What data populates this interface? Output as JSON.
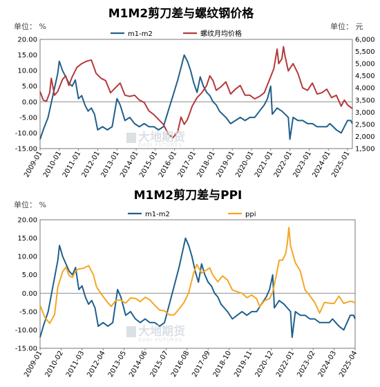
{
  "chart_data": [
    {
      "type": "line",
      "title": "M1M2剪刀差与螺纹钢价格",
      "left_unit_label": "单位：  %",
      "right_unit_label": "单位：  元",
      "ylim_left": [
        -15,
        20
      ],
      "yticks_left": [
        "-15.00",
        "-10.00",
        "-5.00",
        "0.00",
        "5.00",
        "10.00",
        "15.00",
        "20.00"
      ],
      "ylim_right": [
        1500,
        6000
      ],
      "yticks_right": [
        "1,500",
        "2,000",
        "2,500",
        "3,000",
        "3,500",
        "4,000",
        "4,500",
        "5,000",
        "5,500",
        "6,000"
      ],
      "x_range": [
        "2009-01",
        "2025-04"
      ],
      "x_ticks": [
        "2009-01",
        "2010-01",
        "2011-01",
        "2012-01",
        "2013-01",
        "2014-01",
        "2015-01",
        "2016-01",
        "2017-01",
        "2018-01",
        "2019-01",
        "2020-01",
        "2021-01",
        "2022-01",
        "2023-01",
        "2024-01",
        "2025-01"
      ],
      "grid": false,
      "legend_position": "top",
      "series": [
        {
          "name": "m1-m2",
          "axis": "left",
          "color": "#1f5f8b",
          "points": [
            [
              "2009-01",
              -12
            ],
            [
              "2009-03",
              -9
            ],
            [
              "2009-06",
              -5
            ],
            [
              "2009-09",
              2
            ],
            [
              "2009-12",
              9
            ],
            [
              "2010-01",
              13
            ],
            [
              "2010-03",
              10
            ],
            [
              "2010-05",
              8
            ],
            [
              "2010-07",
              6
            ],
            [
              "2010-09",
              5
            ],
            [
              "2010-11",
              7
            ],
            [
              "2011-01",
              1
            ],
            [
              "2011-03",
              2
            ],
            [
              "2011-05",
              -1
            ],
            [
              "2011-07",
              -3
            ],
            [
              "2011-09",
              -2
            ],
            [
              "2011-11",
              -4
            ],
            [
              "2012-01",
              -9
            ],
            [
              "2012-04",
              -8
            ],
            [
              "2012-07",
              -9
            ],
            [
              "2012-10",
              -8
            ],
            [
              "2013-01",
              1
            ],
            [
              "2013-03",
              -1
            ],
            [
              "2013-06",
              -6
            ],
            [
              "2013-09",
              -5
            ],
            [
              "2013-12",
              -7
            ],
            [
              "2014-03",
              -8
            ],
            [
              "2014-06",
              -7
            ],
            [
              "2014-09",
              -8
            ],
            [
              "2014-12",
              -8
            ],
            [
              "2015-03",
              -9
            ],
            [
              "2015-06",
              -8
            ],
            [
              "2015-09",
              -3
            ],
            [
              "2015-12",
              2
            ],
            [
              "2016-03",
              7
            ],
            [
              "2016-05",
              11
            ],
            [
              "2016-07",
              15
            ],
            [
              "2016-09",
              13
            ],
            [
              "2016-11",
              10
            ],
            [
              "2017-01",
              6
            ],
            [
              "2017-03",
              3
            ],
            [
              "2017-05",
              8
            ],
            [
              "2017-07",
              5
            ],
            [
              "2017-09",
              3
            ],
            [
              "2017-11",
              2
            ],
            [
              "2018-01",
              0
            ],
            [
              "2018-03",
              -1
            ],
            [
              "2018-05",
              -3
            ],
            [
              "2018-07",
              -4
            ],
            [
              "2018-09",
              -5
            ],
            [
              "2018-12",
              -7
            ],
            [
              "2019-03",
              -6
            ],
            [
              "2019-06",
              -5
            ],
            [
              "2019-09",
              -6
            ],
            [
              "2019-12",
              -5
            ],
            [
              "2020-03",
              -5
            ],
            [
              "2020-06",
              -3
            ],
            [
              "2020-09",
              -1
            ],
            [
              "2020-11",
              1
            ],
            [
              "2021-01",
              5
            ],
            [
              "2021-02",
              -4
            ],
            [
              "2021-05",
              -2
            ],
            [
              "2021-08",
              -3
            ],
            [
              "2021-10",
              -4
            ],
            [
              "2021-12",
              -5
            ],
            [
              "2022-01",
              -12
            ],
            [
              "2022-03",
              -5
            ],
            [
              "2022-06",
              -6
            ],
            [
              "2022-09",
              -6
            ],
            [
              "2022-12",
              -7
            ],
            [
              "2023-03",
              -7
            ],
            [
              "2023-06",
              -8
            ],
            [
              "2023-09",
              -8
            ],
            [
              "2023-12",
              -8
            ],
            [
              "2024-02",
              -7
            ],
            [
              "2024-04",
              -8
            ],
            [
              "2024-06",
              -9
            ],
            [
              "2024-09",
              -10
            ],
            [
              "2024-11",
              -8
            ],
            [
              "2025-01",
              -6
            ],
            [
              "2025-03",
              -6
            ],
            [
              "2025-04",
              -7
            ]
          ]
        },
        {
          "name": "螺纹月均价格",
          "axis": "right",
          "color": "#b5383a",
          "points": [
            [
              "2009-01",
              3850
            ],
            [
              "2009-03",
              3500
            ],
            [
              "2009-05",
              3450
            ],
            [
              "2009-07",
              3800
            ],
            [
              "2009-08",
              4400
            ],
            [
              "2009-10",
              3700
            ],
            [
              "2009-12",
              3850
            ],
            [
              "2010-03",
              4350
            ],
            [
              "2010-05",
              4500
            ],
            [
              "2010-07",
              4100
            ],
            [
              "2010-09",
              4450
            ],
            [
              "2010-12",
              4850
            ],
            [
              "2011-03",
              5000
            ],
            [
              "2011-06",
              5100
            ],
            [
              "2011-09",
              5150
            ],
            [
              "2011-12",
              4600
            ],
            [
              "2012-03",
              4400
            ],
            [
              "2012-06",
              4300
            ],
            [
              "2012-09",
              3800
            ],
            [
              "2012-12",
              4000
            ],
            [
              "2013-03",
              4200
            ],
            [
              "2013-06",
              3700
            ],
            [
              "2013-09",
              3650
            ],
            [
              "2013-12",
              3700
            ],
            [
              "2014-03",
              3500
            ],
            [
              "2014-06",
              3400
            ],
            [
              "2014-09",
              3050
            ],
            [
              "2014-12",
              2900
            ],
            [
              "2015-03",
              2700
            ],
            [
              "2015-06",
              2500
            ],
            [
              "2015-09",
              2100
            ],
            [
              "2015-12",
              1950
            ],
            [
              "2016-03",
              2200
            ],
            [
              "2016-05",
              2800
            ],
            [
              "2016-07",
              2500
            ],
            [
              "2016-09",
              2700
            ],
            [
              "2016-12",
              3250
            ],
            [
              "2017-03",
              3600
            ],
            [
              "2017-06",
              3800
            ],
            [
              "2017-09",
              4100
            ],
            [
              "2017-11",
              4500
            ],
            [
              "2018-01",
              4300
            ],
            [
              "2018-03",
              3900
            ],
            [
              "2018-06",
              4050
            ],
            [
              "2018-09",
              4250
            ],
            [
              "2018-12",
              3750
            ],
            [
              "2019-03",
              3950
            ],
            [
              "2019-06",
              4100
            ],
            [
              "2019-09",
              3700
            ],
            [
              "2019-12",
              3700
            ],
            [
              "2020-03",
              3550
            ],
            [
              "2020-06",
              3650
            ],
            [
              "2020-09",
              3800
            ],
            [
              "2020-12",
              4300
            ],
            [
              "2021-03",
              4800
            ],
            [
              "2021-05",
              5600
            ],
            [
              "2021-06",
              5000
            ],
            [
              "2021-08",
              5200
            ],
            [
              "2021-09",
              5700
            ],
            [
              "2021-10",
              5300
            ],
            [
              "2021-12",
              4700
            ],
            [
              "2022-03",
              5000
            ],
            [
              "2022-06",
              4600
            ],
            [
              "2022-09",
              4000
            ],
            [
              "2022-12",
              3900
            ],
            [
              "2023-03",
              4200
            ],
            [
              "2023-06",
              3750
            ],
            [
              "2023-09",
              3800
            ],
            [
              "2023-12",
              3950
            ],
            [
              "2024-03",
              3600
            ],
            [
              "2024-06",
              3700
            ],
            [
              "2024-09",
              3250
            ],
            [
              "2024-11",
              3500
            ],
            [
              "2025-01",
              3300
            ],
            [
              "2025-04",
              3150
            ]
          ]
        }
      ]
    },
    {
      "type": "line",
      "title": "M1M2剪刀差与PPI",
      "left_unit_label": "单位：  %",
      "ylim_left": [
        -15,
        20
      ],
      "yticks_left": [
        "-15.00",
        "-10.00",
        "-5.00",
        "0.00",
        "5.00",
        "10.00",
        "15.00",
        "20.00"
      ],
      "x_range": [
        "2009-01",
        "2025-04"
      ],
      "x_ticks": [
        "2009-01",
        "2010-02",
        "2011-03",
        "2012-04",
        "2013-05",
        "2014-06",
        "2015-07",
        "2016-08",
        "2017-09",
        "2018-10",
        "2019-11",
        "2020-12",
        "2022-01",
        "2023-02",
        "2024-03",
        "2025-04"
      ],
      "grid": false,
      "legend_position": "top",
      "series": [
        {
          "name": "m1-m2",
          "axis": "left",
          "color": "#1f5f8b",
          "ref": "same as chart 1"
        },
        {
          "name": "ppi",
          "axis": "left",
          "color": "#f5a623",
          "points": [
            [
              "2009-01",
              -3.3
            ],
            [
              "2009-04",
              -6.6
            ],
            [
              "2009-07",
              -8.2
            ],
            [
              "2009-10",
              -5.8
            ],
            [
              "2009-12",
              1.7
            ],
            [
              "2010-03",
              5.9
            ],
            [
              "2010-05",
              7.1
            ],
            [
              "2010-07",
              4.8
            ],
            [
              "2010-09",
              4.3
            ],
            [
              "2010-11",
              6.1
            ],
            [
              "2011-01",
              6.6
            ],
            [
              "2011-04",
              6.8
            ],
            [
              "2011-07",
              7.5
            ],
            [
              "2011-10",
              5.0
            ],
            [
              "2011-12",
              1.7
            ],
            [
              "2012-03",
              -0.3
            ],
            [
              "2012-06",
              -2.1
            ],
            [
              "2012-09",
              -3.6
            ],
            [
              "2012-12",
              -1.9
            ],
            [
              "2013-03",
              -1.9
            ],
            [
              "2013-06",
              -2.7
            ],
            [
              "2013-09",
              -1.3
            ],
            [
              "2013-12",
              -1.4
            ],
            [
              "2014-03",
              -2.3
            ],
            [
              "2014-06",
              -1.1
            ],
            [
              "2014-09",
              -1.8
            ],
            [
              "2014-12",
              -3.3
            ],
            [
              "2015-03",
              -4.6
            ],
            [
              "2015-06",
              -4.8
            ],
            [
              "2015-09",
              -5.9
            ],
            [
              "2015-12",
              -5.9
            ],
            [
              "2016-03",
              -4.3
            ],
            [
              "2016-06",
              -2.6
            ],
            [
              "2016-09",
              0.1
            ],
            [
              "2016-12",
              5.5
            ],
            [
              "2017-02",
              7.8
            ],
            [
              "2017-05",
              5.5
            ],
            [
              "2017-08",
              6.3
            ],
            [
              "2017-10",
              6.9
            ],
            [
              "2017-12",
              4.9
            ],
            [
              "2018-03",
              3.1
            ],
            [
              "2018-06",
              4.7
            ],
            [
              "2018-09",
              3.6
            ],
            [
              "2018-12",
              0.9
            ],
            [
              "2019-03",
              0.4
            ],
            [
              "2019-06",
              0.0
            ],
            [
              "2019-09",
              -1.2
            ],
            [
              "2019-12",
              -0.5
            ],
            [
              "2020-03",
              -1.5
            ],
            [
              "2020-05",
              -3.7
            ],
            [
              "2020-08",
              -2.0
            ],
            [
              "2020-11",
              -1.5
            ],
            [
              "2021-01",
              0.3
            ],
            [
              "2021-03",
              4.4
            ],
            [
              "2021-05",
              9.0
            ],
            [
              "2021-07",
              9.0
            ],
            [
              "2021-09",
              10.7
            ],
            [
              "2021-10",
              13.5
            ],
            [
              "2021-11",
              17.9
            ],
            [
              "2021-12",
              12.9
            ],
            [
              "2022-03",
              8.3
            ],
            [
              "2022-06",
              6.1
            ],
            [
              "2022-09",
              0.9
            ],
            [
              "2022-12",
              -0.7
            ],
            [
              "2023-03",
              -2.5
            ],
            [
              "2023-06",
              -5.4
            ],
            [
              "2023-09",
              -2.5
            ],
            [
              "2023-12",
              -2.7
            ],
            [
              "2024-03",
              -2.8
            ],
            [
              "2024-06",
              -0.8
            ],
            [
              "2024-09",
              -2.8
            ],
            [
              "2024-12",
              -2.3
            ],
            [
              "2025-02",
              -2.2
            ],
            [
              "2025-04",
              -2.7
            ]
          ]
        }
      ]
    }
  ]
}
